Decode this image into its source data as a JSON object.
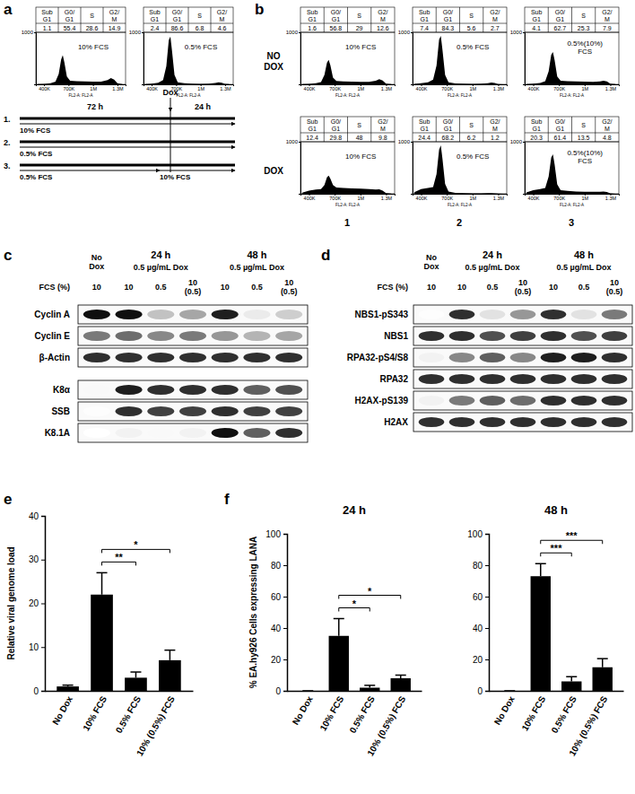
{
  "panels": [
    "a",
    "b",
    "c",
    "d",
    "e",
    "f"
  ],
  "panel_b": {
    "row_labels": [
      "NO DOX",
      "DOX"
    ],
    "column_labels": [
      "1",
      "2",
      "3"
    ]
  },
  "timeline": {
    "event": "Dox",
    "durations": [
      "72 h",
      "24 h"
    ],
    "rows": [
      {
        "label": "1.",
        "media": [
          "10% FCS"
        ]
      },
      {
        "label": "2.",
        "media": [
          "0.5% FCS"
        ]
      },
      {
        "label": "3.",
        "media": [
          "0.5% FCS",
          "10% FCS"
        ]
      }
    ]
  },
  "chart_data": [
    {
      "type": "area",
      "title": "10% FCS",
      "color": "#000000",
      "x_label": "FL2-A: FL2-A",
      "x": [
        320000,
        400000,
        480000,
        540000,
        580000,
        610000,
        630000,
        650000,
        680000,
        720000,
        800000,
        900000,
        1000000,
        1100000,
        1180000,
        1220000,
        1260000,
        1300000,
        1360000
      ],
      "values": [
        5,
        10,
        20,
        50,
        200,
        480,
        560,
        420,
        150,
        70,
        60,
        55,
        50,
        50,
        80,
        120,
        90,
        20,
        5
      ],
      "xlim": [
        300000,
        1400000
      ],
      "xticks": [
        {
          "value": 400000,
          "label": "400K"
        },
        {
          "value": 700000,
          "label": "700K"
        },
        {
          "value": 1000000,
          "label": "1M"
        },
        {
          "value": 1300000,
          "label": "1.3M"
        }
      ],
      "ylim": [
        0,
        1000
      ],
      "yticks": [
        1000
      ],
      "stats": {
        "labels": [
          "Sub G1",
          "G0/ G1",
          "S",
          "G2/ M"
        ],
        "values": [
          1.1,
          55.4,
          28.6,
          14.9
        ]
      }
    },
    {
      "type": "area",
      "title": "0.5% FCS",
      "color": "#000000",
      "x_label": "FL2-A: FL2-A",
      "x": [
        320000,
        400000,
        480000,
        540000,
        580000,
        610000,
        630000,
        650000,
        680000,
        720000,
        800000,
        900000,
        1000000,
        1100000,
        1180000,
        1220000,
        1260000,
        1300000,
        1360000
      ],
      "values": [
        5,
        15,
        30,
        80,
        350,
        850,
        920,
        640,
        180,
        40,
        20,
        15,
        10,
        12,
        25,
        40,
        30,
        8,
        2
      ],
      "xlim": [
        300000,
        1400000
      ],
      "xticks": [
        {
          "value": 400000,
          "label": "400K"
        },
        {
          "value": 700000,
          "label": "700K"
        },
        {
          "value": 1000000,
          "label": "1M"
        },
        {
          "value": 1300000,
          "label": "1.3M"
        }
      ],
      "ylim": [
        0,
        1000
      ],
      "yticks": [
        1000
      ],
      "stats": {
        "labels": [
          "Sub G1",
          "G0/ G1",
          "S",
          "G2/ M"
        ],
        "values": [
          2.4,
          86.6,
          6.8,
          4.6
        ]
      }
    },
    {
      "type": "area",
      "title": "10% FCS",
      "color": "#000000",
      "x_label": "FL2-A: FL2-A",
      "x": [
        320000,
        400000,
        480000,
        540000,
        580000,
        610000,
        630000,
        650000,
        680000,
        720000,
        800000,
        900000,
        1000000,
        1100000,
        1180000,
        1220000,
        1260000,
        1300000,
        1360000
      ],
      "values": [
        5,
        10,
        20,
        45,
        180,
        420,
        470,
        360,
        130,
        65,
        55,
        50,
        48,
        46,
        70,
        100,
        75,
        15,
        4
      ],
      "xlim": [
        300000,
        1400000
      ],
      "xticks": [
        {
          "value": 400000,
          "label": "400K"
        },
        {
          "value": 700000,
          "label": "700K"
        },
        {
          "value": 1000000,
          "label": "1M"
        },
        {
          "value": 1300000,
          "label": "1.3M"
        }
      ],
      "ylim": [
        0,
        1000
      ],
      "yticks": [
        1000
      ],
      "stats": {
        "labels": [
          "Sub G1",
          "G0/ G1",
          "S",
          "G2/ M"
        ],
        "values": [
          1.6,
          56.8,
          29,
          12.6
        ]
      }
    },
    {
      "type": "area",
      "title": "0.5% FCS",
      "color": "#000000",
      "x_label": "FL2-A: FL2-A",
      "x": [
        320000,
        400000,
        480000,
        540000,
        580000,
        610000,
        630000,
        650000,
        680000,
        720000,
        800000,
        900000,
        1000000,
        1100000,
        1180000,
        1220000,
        1260000,
        1300000,
        1360000
      ],
      "values": [
        8,
        20,
        40,
        90,
        360,
        860,
        930,
        650,
        180,
        40,
        18,
        12,
        10,
        12,
        22,
        35,
        25,
        6,
        2
      ],
      "xlim": [
        300000,
        1400000
      ],
      "xticks": [
        {
          "value": 400000,
          "label": "400K"
        },
        {
          "value": 700000,
          "label": "700K"
        },
        {
          "value": 1000000,
          "label": "1M"
        },
        {
          "value": 1300000,
          "label": "1.3M"
        }
      ],
      "ylim": [
        0,
        1000
      ],
      "yticks": [
        1000
      ],
      "stats": {
        "labels": [
          "Sub G1",
          "G0/ G1",
          "S",
          "G2/ M"
        ],
        "values": [
          7.4,
          84.3,
          5.6,
          2.7
        ]
      }
    },
    {
      "type": "area",
      "title": "0.5%(10%) FCS",
      "color": "#000000",
      "x_label": "FL2-A: FL2-A",
      "x": [
        320000,
        400000,
        480000,
        540000,
        580000,
        610000,
        630000,
        650000,
        680000,
        720000,
        800000,
        900000,
        1000000,
        1100000,
        1180000,
        1220000,
        1260000,
        1300000,
        1360000
      ],
      "values": [
        6,
        14,
        28,
        60,
        250,
        570,
        620,
        460,
        150,
        70,
        60,
        55,
        50,
        48,
        55,
        70,
        55,
        12,
        3
      ],
      "xlim": [
        300000,
        1400000
      ],
      "xticks": [
        {
          "value": 400000,
          "label": "400K"
        },
        {
          "value": 700000,
          "label": "700K"
        },
        {
          "value": 1000000,
          "label": "1M"
        },
        {
          "value": 1300000,
          "label": "1.3M"
        }
      ],
      "ylim": [
        0,
        1000
      ],
      "yticks": [
        1000
      ],
      "stats": {
        "labels": [
          "Sub G1",
          "G0/ G1",
          "S",
          "G2/ M"
        ],
        "values": [
          4.1,
          62.7,
          25.3,
          7.9
        ]
      }
    },
    {
      "type": "area",
      "title": "10% FCS",
      "color": "#000000",
      "x_label": "FL2-A: FL2-A",
      "x": [
        320000,
        400000,
        480000,
        540000,
        580000,
        610000,
        630000,
        650000,
        680000,
        720000,
        800000,
        900000,
        1000000,
        1100000,
        1180000,
        1220000,
        1260000,
        1300000,
        1360000
      ],
      "values": [
        20,
        60,
        80,
        90,
        170,
        320,
        350,
        290,
        170,
        120,
        110,
        105,
        100,
        90,
        80,
        85,
        60,
        15,
        4
      ],
      "xlim": [
        300000,
        1400000
      ],
      "xticks": [
        {
          "value": 400000,
          "label": "400K"
        },
        {
          "value": 700000,
          "label": "700K"
        },
        {
          "value": 1000000,
          "label": "1M"
        },
        {
          "value": 1300000,
          "label": "1.3M"
        }
      ],
      "ylim": [
        0,
        1000
      ],
      "yticks": [
        1000
      ],
      "stats": {
        "labels": [
          "Sub G1",
          "G0/ G1",
          "S",
          "G2/ M"
        ],
        "values": [
          12.4,
          29.8,
          48,
          9.8
        ]
      }
    },
    {
      "type": "area",
      "title": "0.5% FCS",
      "color": "#000000",
      "x_label": "FL2-A: FL2-A",
      "x": [
        320000,
        400000,
        480000,
        540000,
        580000,
        610000,
        630000,
        650000,
        680000,
        720000,
        800000,
        900000,
        1000000,
        1100000,
        1180000,
        1220000,
        1260000,
        1300000,
        1360000
      ],
      "values": [
        30,
        90,
        110,
        130,
        380,
        850,
        930,
        660,
        190,
        45,
        18,
        12,
        8,
        8,
        12,
        15,
        10,
        4,
        2
      ],
      "xlim": [
        300000,
        1400000
      ],
      "xticks": [
        {
          "value": 400000,
          "label": "400K"
        },
        {
          "value": 700000,
          "label": "700K"
        },
        {
          "value": 1000000,
          "label": "1M"
        },
        {
          "value": 1300000,
          "label": "1.3M"
        }
      ],
      "ylim": [
        0,
        1000
      ],
      "yticks": [
        1000
      ],
      "stats": {
        "labels": [
          "Sub G1",
          "G0/ G1",
          "S",
          "G2/ M"
        ],
        "values": [
          24.4,
          68.2,
          6.2,
          1.2
        ]
      }
    },
    {
      "type": "area",
      "title": "0.5%(10%) FCS",
      "color": "#000000",
      "x_label": "FL2-A: FL2-A",
      "x": [
        320000,
        400000,
        480000,
        540000,
        580000,
        610000,
        630000,
        650000,
        680000,
        720000,
        800000,
        900000,
        1000000,
        1100000,
        1180000,
        1220000,
        1260000,
        1300000,
        1360000
      ],
      "values": [
        25,
        70,
        90,
        110,
        330,
        700,
        760,
        560,
        180,
        70,
        55,
        45,
        40,
        38,
        40,
        45,
        35,
        8,
        2
      ],
      "xlim": [
        300000,
        1400000
      ],
      "xticks": [
        {
          "value": 400000,
          "label": "400K"
        },
        {
          "value": 700000,
          "label": "700K"
        },
        {
          "value": 1000000,
          "label": "1M"
        },
        {
          "value": 1300000,
          "label": "1.3M"
        }
      ],
      "ylim": [
        0,
        1000
      ],
      "yticks": [
        1000
      ],
      "stats": {
        "labels": [
          "Sub G1",
          "G0/ G1",
          "S",
          "G2/ M"
        ],
        "values": [
          20.3,
          61.4,
          13.5,
          4.8
        ]
      }
    },
    {
      "type": "bar",
      "color": "#000000",
      "y_label": "Relative viral genome load",
      "categories": [
        "No Dox",
        "10% FCS",
        "0.5% FCS",
        "10% (0.5%) FCS"
      ],
      "values": [
        1,
        22,
        3,
        7
      ],
      "errors": [
        0.3,
        5,
        1.3,
        2.3
      ],
      "ylim": [
        0,
        40
      ],
      "yticks": [
        0,
        10,
        20,
        30,
        40
      ],
      "annotations": [
        {
          "between": [
            "10% FCS",
            "0.5% FCS"
          ],
          "text": "**"
        },
        {
          "between": [
            "10% FCS",
            "10% (0.5%) FCS"
          ],
          "text": "*"
        }
      ]
    },
    {
      "type": "bar",
      "color": "#000000",
      "title": "24 h",
      "y_label": "% EA.hy926 Cells expressing LANA",
      "categories": [
        "No Dox",
        "10% FCS",
        "0.5% FCS",
        "10% (0.5%) FCS"
      ],
      "values": [
        0,
        35,
        2,
        8
      ],
      "errors": [
        0,
        11,
        1.5,
        2
      ],
      "ylim": [
        0,
        100
      ],
      "yticks": [
        0,
        20,
        40,
        60,
        80,
        100
      ],
      "annotations": [
        {
          "between": [
            "10% FCS",
            "0.5% FCS"
          ],
          "text": "*"
        },
        {
          "between": [
            "10% FCS",
            "10% (0.5%) FCS"
          ],
          "text": "*"
        }
      ]
    },
    {
      "type": "bar",
      "color": "#000000",
      "title": "48 h",
      "categories": [
        "No Dox",
        "10% FCS",
        "0.5% FCS",
        "10% (0.5%) FCS"
      ],
      "values": [
        0,
        73,
        6,
        15
      ],
      "errors": [
        0,
        8,
        3,
        5.5
      ],
      "ylim": [
        0,
        100
      ],
      "yticks": [
        0,
        20,
        40,
        60,
        80,
        100
      ],
      "annotations": [
        {
          "between": [
            "10% FCS",
            "0.5% FCS"
          ],
          "text": "***"
        },
        {
          "between": [
            "10% FCS",
            "10% (0.5%) FCS"
          ],
          "text": "***"
        }
      ]
    }
  ],
  "blots": [
    {
      "no_dox": "No Dox",
      "groups": [
        {
          "time": "24 h",
          "treatment": "0.5 µg/mL Dox"
        },
        {
          "time": "48 h",
          "treatment": "0.5 µg/mL Dox"
        }
      ],
      "fcs_label": "FCS (%)",
      "fcs": [
        "10",
        "10",
        "0.5",
        "10 (0.5)",
        "10",
        "0.5",
        "10 (0.5)"
      ],
      "blocks": [
        [
          {
            "name": "Cyclin A",
            "intensity": [
              0.95,
              0.95,
              0.35,
              0.45,
              0.9,
              0.15,
              0.3
            ]
          },
          {
            "name": "Cyclin E",
            "intensity": [
              0.6,
              0.65,
              0.55,
              0.6,
              0.5,
              0.4,
              0.45
            ]
          },
          {
            "name": "β-Actin",
            "intensity": [
              0.85,
              0.85,
              0.85,
              0.85,
              0.85,
              0.85,
              0.85
            ]
          }
        ],
        [
          {
            "name": "K8α",
            "intensity": [
              0.05,
              0.9,
              0.85,
              0.85,
              0.85,
              0.7,
              0.75
            ]
          },
          {
            "name": "SSB",
            "intensity": [
              0.02,
              0.85,
              0.8,
              0.8,
              0.85,
              0.8,
              0.8
            ]
          },
          {
            "name": "K8.1A",
            "intensity": [
              0,
              0.1,
              0.05,
              0.1,
              0.95,
              0.7,
              0.85
            ]
          }
        ]
      ]
    },
    {
      "no_dox": "No Dox",
      "groups": [
        {
          "time": "24 h",
          "treatment": "0.5 µg/mL Dox"
        },
        {
          "time": "48 h",
          "treatment": "0.5 µg/mL Dox"
        }
      ],
      "fcs_label": "FCS (%)",
      "fcs": [
        "10",
        "10",
        "0.5",
        "10 (0.5)",
        "10",
        "0.5",
        "10 (0.5)"
      ],
      "blocks": [
        [
          {
            "name": "NBS1-pS343",
            "intensity": [
              0.02,
              0.85,
              0.2,
              0.5,
              0.85,
              0.2,
              0.6
            ]
          },
          {
            "name": "NBS1",
            "intensity": [
              0.85,
              0.85,
              0.75,
              0.8,
              0.85,
              0.75,
              0.8
            ]
          },
          {
            "name": "RPA32-pS4/S8",
            "intensity": [
              0.1,
              0.55,
              0.7,
              0.55,
              0.9,
              0.9,
              0.85
            ]
          },
          {
            "name": "RPA32",
            "intensity": [
              0.85,
              0.85,
              0.85,
              0.85,
              0.85,
              0.85,
              0.85
            ]
          },
          {
            "name": "H2AX-pS139",
            "intensity": [
              0.1,
              0.6,
              0.7,
              0.65,
              0.85,
              0.85,
              0.85
            ]
          },
          {
            "name": "H2AX",
            "intensity": [
              0.85,
              0.85,
              0.85,
              0.85,
              0.85,
              0.85,
              0.85
            ]
          }
        ]
      ]
    }
  ]
}
